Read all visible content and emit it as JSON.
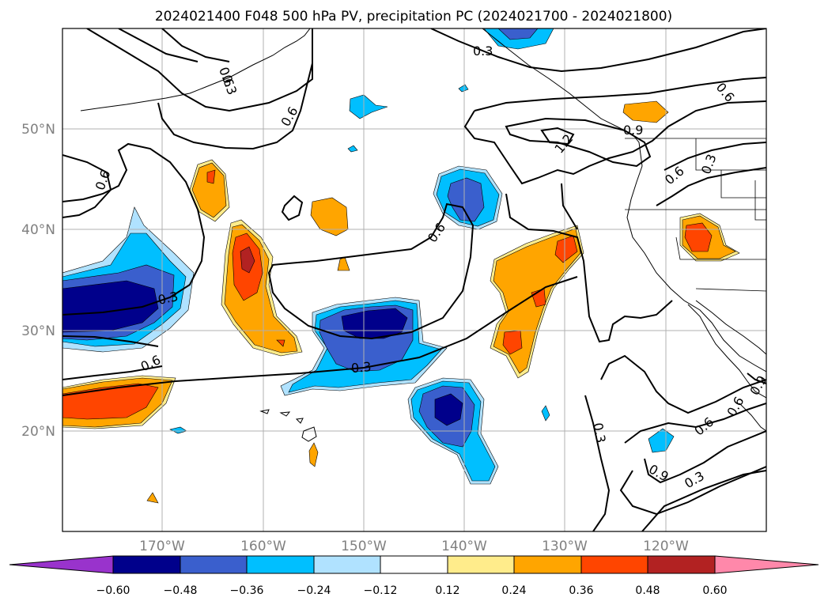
{
  "title": "2024021400 F048 500 hPa PV, precipitation PC (2024021700 - 2024021800)",
  "lat_labels": [
    "50°N",
    "40°N",
    "30°N",
    "20°N"
  ],
  "lon_labels": [
    "170°W",
    "160°W",
    "150°W",
    "140°W",
    "130°W",
    "120°W"
  ],
  "contour_labels": [
    "0.3",
    "0.6",
    "0.6",
    "0.6",
    "0.6",
    "0.3",
    "0.6",
    "0.3",
    "0.3",
    "0.6",
    "1.2",
    "0.9",
    "0.6",
    "0.3",
    "0.6",
    "0.3",
    "0.6",
    "0.9",
    "0.9",
    "0.3"
  ],
  "colorbar": {
    "ticks": [
      "−0.60",
      "−0.48",
      "−0.36",
      "−0.24",
      "−0.12",
      "0.12",
      "0.24",
      "0.36",
      "0.48",
      "0.60"
    ],
    "colors": [
      "#9933cc",
      "#00008b",
      "#3a5fcd",
      "#00bfff",
      "#b0e2ff",
      "#ffffff",
      "#ffec8b",
      "#ffa500",
      "#ff4500",
      "#b22222",
      "#ff88aa"
    ]
  },
  "shading_colors": {
    "neg_light": "#b0e2ff",
    "neg_mid": "#00bfff",
    "neg_strong": "#3a5fcd",
    "neg_max": "#00008b",
    "pos_light": "#ffec8b",
    "pos_mid": "#ffa500",
    "pos_strong": "#ff4500",
    "pos_max": "#b22222"
  }
}
